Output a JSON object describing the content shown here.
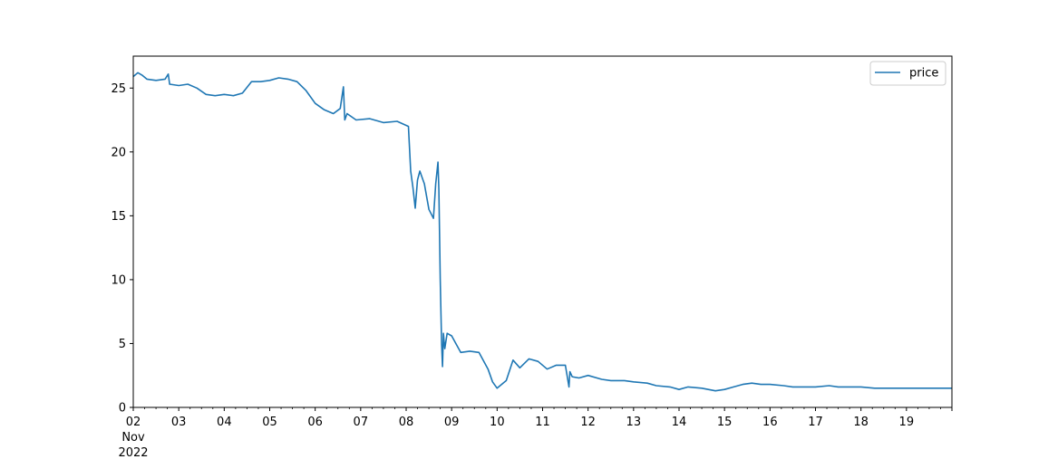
{
  "chart_data": {
    "type": "line",
    "title": "",
    "xlabel": "",
    "ylabel": "",
    "grid": false,
    "legend": {
      "placement": "top-right",
      "entries": [
        "price"
      ]
    },
    "x_axis": {
      "start_day": 2,
      "end_day": 20,
      "ticks": [
        {
          "day": 2,
          "label": "02"
        },
        {
          "day": 3,
          "label": "03"
        },
        {
          "day": 4,
          "label": "04"
        },
        {
          "day": 5,
          "label": "05"
        },
        {
          "day": 6,
          "label": "06"
        },
        {
          "day": 7,
          "label": "07"
        },
        {
          "day": 8,
          "label": "08"
        },
        {
          "day": 9,
          "label": "09"
        },
        {
          "day": 10,
          "label": "10"
        },
        {
          "day": 11,
          "label": "11"
        },
        {
          "day": 12,
          "label": "12"
        },
        {
          "day": 13,
          "label": "13"
        },
        {
          "day": 14,
          "label": "14"
        },
        {
          "day": 15,
          "label": "15"
        },
        {
          "day": 16,
          "label": "16"
        },
        {
          "day": 17,
          "label": "17"
        },
        {
          "day": 18,
          "label": "18"
        },
        {
          "day": 19,
          "label": "19"
        }
      ],
      "month_label": "Nov",
      "year_label": "2022"
    },
    "y_axis": {
      "ylim": [
        0,
        27.5
      ],
      "ticks": [
        {
          "value": 0,
          "label": "0"
        },
        {
          "value": 5,
          "label": "5"
        },
        {
          "value": 10,
          "label": "10"
        },
        {
          "value": 15,
          "label": "15"
        },
        {
          "value": 20,
          "label": "20"
        },
        {
          "value": 25,
          "label": "25"
        }
      ]
    },
    "series": [
      {
        "name": "price",
        "color": "#1f77b4",
        "x": [
          2.0,
          2.1,
          2.2,
          2.3,
          2.5,
          2.7,
          2.77,
          2.8,
          3.0,
          3.2,
          3.4,
          3.6,
          3.8,
          4.0,
          4.2,
          4.4,
          4.6,
          4.8,
          5.0,
          5.2,
          5.4,
          5.6,
          5.8,
          6.0,
          6.2,
          6.4,
          6.55,
          6.62,
          6.65,
          6.7,
          6.9,
          7.2,
          7.5,
          7.8,
          8.05,
          8.1,
          8.15,
          8.2,
          8.25,
          8.3,
          8.4,
          8.5,
          8.6,
          8.65,
          8.7,
          8.72,
          8.75,
          8.78,
          8.8,
          8.82,
          8.85,
          8.9,
          9.0,
          9.2,
          9.4,
          9.6,
          9.8,
          9.9,
          10.0,
          10.2,
          10.35,
          10.5,
          10.7,
          10.9,
          11.1,
          11.3,
          11.5,
          11.58,
          11.6,
          11.65,
          11.8,
          12.0,
          12.3,
          12.5,
          12.8,
          13.0,
          13.3,
          13.5,
          13.8,
          14.0,
          14.2,
          14.5,
          14.8,
          15.0,
          15.2,
          15.4,
          15.6,
          15.8,
          16.0,
          16.3,
          16.5,
          16.8,
          17.0,
          17.3,
          17.5,
          17.8,
          18.0,
          18.3,
          18.5,
          18.8,
          19.0,
          19.3,
          19.5,
          19.8,
          20.0
        ],
        "values": [
          25.9,
          26.2,
          26.0,
          25.7,
          25.6,
          25.7,
          26.1,
          25.3,
          25.2,
          25.3,
          25.0,
          24.5,
          24.4,
          24.5,
          24.4,
          24.6,
          25.5,
          25.5,
          25.6,
          25.8,
          25.7,
          25.5,
          24.8,
          23.8,
          23.3,
          23.0,
          23.4,
          25.1,
          22.5,
          23.0,
          22.5,
          22.6,
          22.3,
          22.4,
          22.0,
          18.5,
          17.2,
          15.6,
          17.8,
          18.5,
          17.5,
          15.5,
          14.8,
          17.5,
          19.2,
          17.0,
          10.0,
          5.0,
          3.2,
          5.8,
          4.6,
          5.8,
          5.6,
          4.3,
          4.4,
          4.3,
          3.0,
          2.0,
          1.5,
          2.1,
          3.7,
          3.1,
          3.8,
          3.6,
          3.0,
          3.3,
          3.3,
          1.6,
          2.8,
          2.4,
          2.3,
          2.5,
          2.2,
          2.1,
          2.1,
          2.0,
          1.9,
          1.7,
          1.6,
          1.4,
          1.6,
          1.5,
          1.3,
          1.4,
          1.6,
          1.8,
          1.9,
          1.8,
          1.8,
          1.7,
          1.6,
          1.6,
          1.6,
          1.7,
          1.6,
          1.6,
          1.6,
          1.5,
          1.5,
          1.5,
          1.5,
          1.5,
          1.5,
          1.5,
          1.5
        ]
      }
    ]
  }
}
